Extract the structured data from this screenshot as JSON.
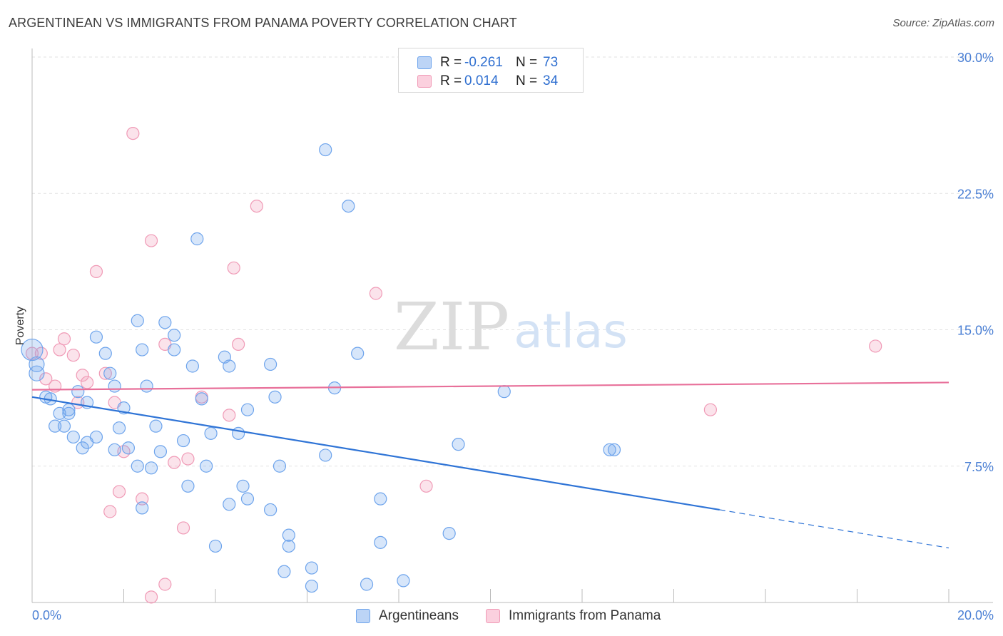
{
  "header": {
    "title": "ARGENTINEAN VS IMMIGRANTS FROM PANAMA POVERTY CORRELATION CHART",
    "source": "Source: ZipAtlas.com"
  },
  "watermark": {
    "zip": "ZIP",
    "atlas": "atlas"
  },
  "legend_top": {
    "rows": [
      {
        "r_label": "R =",
        "r_value": "-0.261",
        "n_label": "N =",
        "n_value": "73",
        "color": "#6ea4ec"
      },
      {
        "r_label": "R =",
        "r_value": "0.014",
        "n_label": "N =",
        "n_value": "34",
        "color": "#f09ab6"
      }
    ]
  },
  "legend_bottom": {
    "items": [
      {
        "label": "Argentineans",
        "color": "#6ea4ec"
      },
      {
        "label": "Immigrants from Panama",
        "color": "#f09ab6"
      }
    ]
  },
  "chart_data": {
    "type": "scatter",
    "title": "ARGENTINEAN VS IMMIGRANTS FROM PANAMA POVERTY CORRELATION CHART",
    "xlabel": "",
    "ylabel": "Poverty",
    "xlim": [
      0,
      20
    ],
    "ylim": [
      0,
      30
    ],
    "x_tick_labels": [
      "0.0%",
      "20.0%"
    ],
    "y_ticks": [
      7.5,
      15.0,
      22.5,
      30.0
    ],
    "y_tick_labels": [
      "7.5%",
      "15.0%",
      "22.5%",
      "30.0%"
    ],
    "grid": true,
    "series": [
      {
        "name": "Argentineans",
        "color": "#6ea4ec",
        "trend": {
          "x0": 0,
          "y0": 11.3,
          "x1": 15.0,
          "y1": 5.1,
          "dash_x1": 20,
          "dash_y1": 3.0
        },
        "points": [
          [
            0.0,
            13.9
          ],
          [
            0.1,
            13.1
          ],
          [
            0.1,
            12.6
          ],
          [
            0.3,
            11.3
          ],
          [
            0.4,
            11.2
          ],
          [
            0.6,
            10.4
          ],
          [
            0.8,
            10.6
          ],
          [
            0.8,
            10.4
          ],
          [
            0.5,
            9.7
          ],
          [
            0.7,
            9.7
          ],
          [
            1.0,
            11.6
          ],
          [
            1.2,
            11.0
          ],
          [
            1.4,
            14.6
          ],
          [
            1.6,
            13.7
          ],
          [
            1.7,
            12.6
          ],
          [
            1.8,
            11.9
          ],
          [
            2.0,
            10.7
          ],
          [
            1.9,
            9.6
          ],
          [
            1.4,
            9.1
          ],
          [
            1.2,
            8.8
          ],
          [
            0.9,
            9.1
          ],
          [
            1.1,
            8.5
          ],
          [
            1.8,
            8.4
          ],
          [
            2.1,
            8.5
          ],
          [
            2.3,
            7.5
          ],
          [
            2.6,
            7.4
          ],
          [
            2.8,
            8.3
          ],
          [
            2.7,
            9.7
          ],
          [
            2.5,
            11.9
          ],
          [
            2.4,
            13.9
          ],
          [
            2.9,
            15.4
          ],
          [
            3.1,
            14.7
          ],
          [
            3.1,
            13.9
          ],
          [
            2.3,
            15.5
          ],
          [
            3.5,
            13.0
          ],
          [
            3.7,
            11.2
          ],
          [
            3.9,
            9.3
          ],
          [
            3.3,
            8.9
          ],
          [
            3.8,
            7.5
          ],
          [
            3.4,
            6.4
          ],
          [
            2.4,
            5.2
          ],
          [
            4.2,
            13.5
          ],
          [
            4.3,
            13.0
          ],
          [
            4.5,
            9.3
          ],
          [
            4.7,
            10.6
          ],
          [
            4.6,
            6.4
          ],
          [
            4.7,
            5.7
          ],
          [
            4.3,
            5.4
          ],
          [
            4.0,
            3.1
          ],
          [
            3.6,
            20.0
          ],
          [
            5.2,
            13.1
          ],
          [
            5.3,
            11.3
          ],
          [
            5.4,
            7.5
          ],
          [
            5.2,
            5.1
          ],
          [
            5.6,
            3.7
          ],
          [
            5.6,
            3.1
          ],
          [
            5.5,
            1.7
          ],
          [
            6.1,
            1.9
          ],
          [
            6.1,
            0.9
          ],
          [
            6.4,
            8.1
          ],
          [
            6.6,
            11.8
          ],
          [
            6.4,
            24.9
          ],
          [
            6.9,
            21.8
          ],
          [
            7.1,
            13.7
          ],
          [
            7.6,
            5.7
          ],
          [
            7.6,
            3.3
          ],
          [
            7.3,
            1.0
          ],
          [
            8.1,
            1.2
          ],
          [
            9.3,
            8.7
          ],
          [
            9.1,
            3.8
          ],
          [
            10.3,
            11.6
          ],
          [
            12.6,
            8.4
          ],
          [
            12.7,
            8.4
          ]
        ]
      },
      {
        "name": "Immigrants from Panama",
        "color": "#f09ab6",
        "trend": {
          "x0": 0,
          "y0": 11.7,
          "x1": 20,
          "y1": 12.1
        },
        "points": [
          [
            0.0,
            13.7
          ],
          [
            0.2,
            13.7
          ],
          [
            0.3,
            12.3
          ],
          [
            0.5,
            11.9
          ],
          [
            0.6,
            13.9
          ],
          [
            0.7,
            14.5
          ],
          [
            0.9,
            13.6
          ],
          [
            1.0,
            11.0
          ],
          [
            1.1,
            12.5
          ],
          [
            1.2,
            12.1
          ],
          [
            1.6,
            12.6
          ],
          [
            1.8,
            11.0
          ],
          [
            1.4,
            18.2
          ],
          [
            2.0,
            8.3
          ],
          [
            1.9,
            6.1
          ],
          [
            1.7,
            5.0
          ],
          [
            2.2,
            25.8
          ],
          [
            2.6,
            19.9
          ],
          [
            2.4,
            5.7
          ],
          [
            2.6,
            0.3
          ],
          [
            2.9,
            1.0
          ],
          [
            2.9,
            14.2
          ],
          [
            3.1,
            7.7
          ],
          [
            3.4,
            7.9
          ],
          [
            3.3,
            4.1
          ],
          [
            3.7,
            11.3
          ],
          [
            4.3,
            10.3
          ],
          [
            4.4,
            18.4
          ],
          [
            4.5,
            14.2
          ],
          [
            4.9,
            21.8
          ],
          [
            7.5,
            17.0
          ],
          [
            8.6,
            6.4
          ],
          [
            14.8,
            10.6
          ],
          [
            18.4,
            14.1
          ]
        ]
      }
    ]
  }
}
